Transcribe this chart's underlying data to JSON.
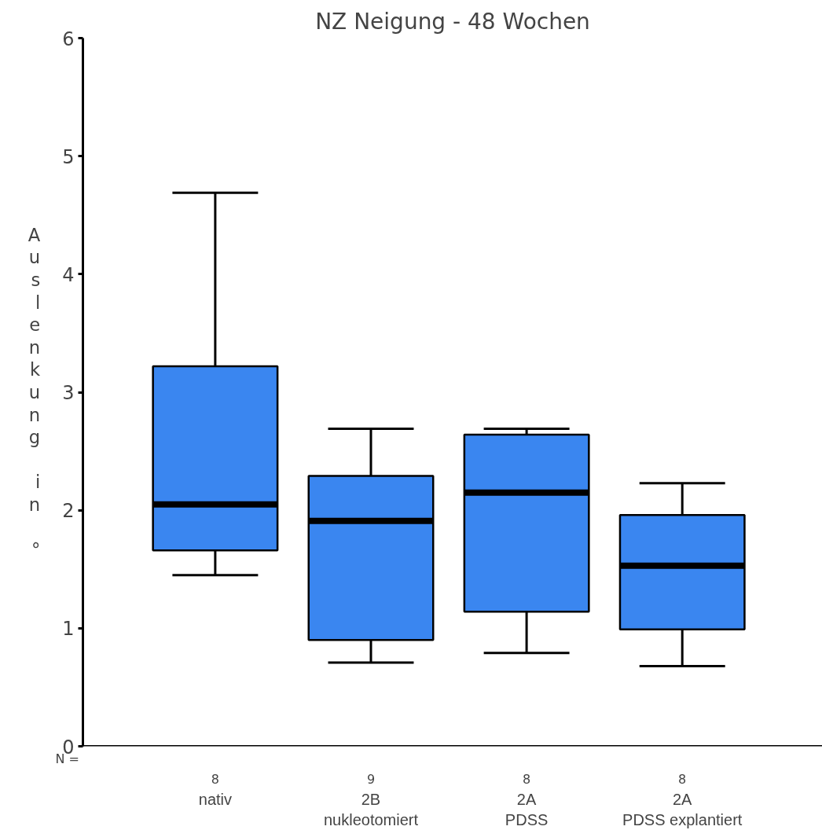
{
  "chart_data": {
    "type": "box",
    "title": "NZ Neigung - 48 Wochen",
    "ylabel": "Auslenkung in °",
    "categories": [
      "nativ",
      "2B\nnukleotomiert",
      "2A\nPDSS",
      "2A\nPDSS explantiert"
    ],
    "boxes": [
      {
        "low": 1.45,
        "q1": 1.66,
        "median": 2.05,
        "q3": 3.22,
        "high": 4.69
      },
      {
        "low": 0.71,
        "q1": 0.9,
        "median": 1.91,
        "q3": 2.29,
        "high": 2.69
      },
      {
        "low": 0.79,
        "q1": 1.14,
        "median": 2.15,
        "q3": 2.64,
        "high": 2.69
      },
      {
        "low": 0.68,
        "q1": 0.99,
        "median": 1.53,
        "q3": 1.96,
        "high": 2.23
      }
    ],
    "color": "#3a86f0",
    "ylim": [
      0,
      6
    ],
    "yticks": [
      0,
      1,
      2,
      3,
      4,
      5,
      6
    ],
    "grid": false,
    "annotations": [
      "N =",
      "8",
      "9",
      "8",
      "8"
    ]
  }
}
